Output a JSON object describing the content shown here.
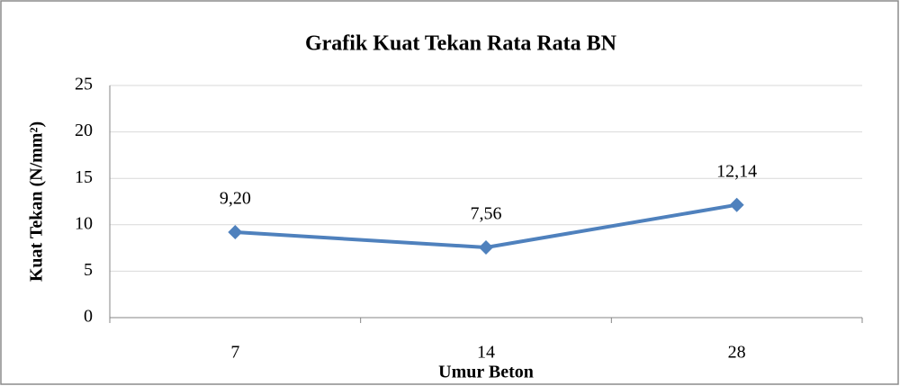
{
  "chart_data": {
    "type": "line",
    "title": "Grafik Kuat Tekan Rata Rata BN",
    "x_label": "Umur Beton",
    "y_label": "Kuat Tekan (N/mm²)",
    "categories": [
      "7",
      "14",
      "28"
    ],
    "series": [
      {
        "name": "BN",
        "color": "#4f81bd",
        "values": [
          9.2,
          7.56,
          12.14
        ],
        "value_labels": [
          "9,20",
          "7,56",
          "12,14"
        ]
      }
    ],
    "ylim": [
      0,
      25
    ],
    "yticks": [
      0,
      5,
      10,
      15,
      20,
      25
    ],
    "grid": true
  }
}
